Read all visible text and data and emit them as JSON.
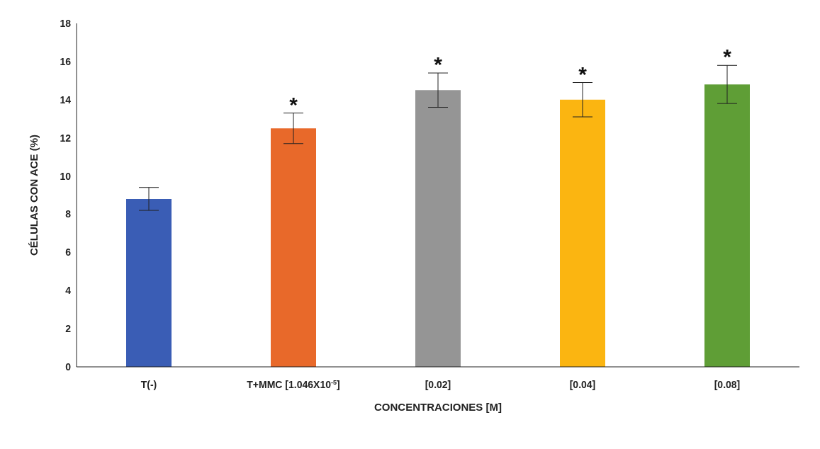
{
  "chart_data": {
    "type": "bar",
    "xlabel": "CONCENTRACIONES [M]",
    "ylabel": "CÉLULAS CON ACE (%)",
    "categories": [
      "T(-)",
      "T+MMC [1.046X10$^{-5}$]",
      "[0.02]",
      "[0.04]",
      "[0.08]"
    ],
    "values": [
      8.8,
      12.5,
      14.5,
      14.0,
      14.8
    ],
    "colors": [
      "#3a5db5",
      "#e8692a",
      "#959595",
      "#fbb511",
      "#5f9e36"
    ],
    "errors": [
      0.6,
      0.8,
      0.9,
      0.9,
      1.0
    ],
    "ylim": [
      0,
      18
    ],
    "yticks": [
      0,
      2,
      4,
      6,
      8,
      10,
      12,
      14,
      16,
      18
    ],
    "grid": false,
    "legend": false,
    "annotations": [
      {
        "text": "*",
        "x": "T+MMC [1.046X10$^{-5}$]",
        "y": 13.3
      },
      {
        "text": "*",
        "x": "[0.02]",
        "y": 15.4
      },
      {
        "text": "*",
        "x": "[0.04]",
        "y": 14.9
      },
      {
        "text": "*",
        "x": "[0.08]",
        "y": 15.8
      }
    ]
  }
}
